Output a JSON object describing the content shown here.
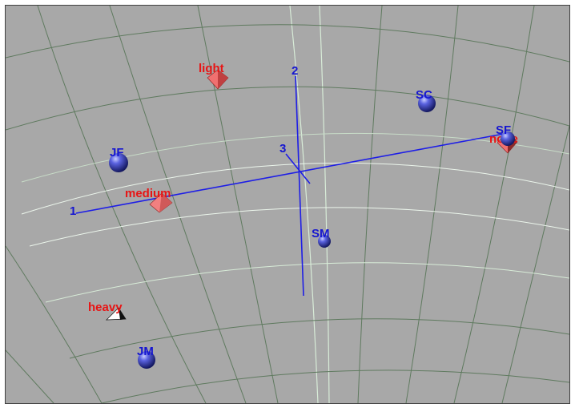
{
  "scene": {
    "background_color": "#a8a8a8",
    "grid_color_dark": "#5f7a5f",
    "grid_color_light": "#d8ecd8",
    "axis_color": "#1e1ee6",
    "sphere_color": "#3d45c8",
    "pyramid_color": "#f07070",
    "sphere_label_color": "#1616d0",
    "pyramid_label_color": "#e81414",
    "axes": [
      {
        "label": "1"
      },
      {
        "label": "2"
      },
      {
        "label": "3"
      }
    ],
    "spheres": [
      {
        "label": "JF"
      },
      {
        "label": "SC"
      },
      {
        "label": "SF"
      },
      {
        "label": "SM"
      },
      {
        "label": "JM"
      }
    ],
    "pyramids": [
      {
        "label": "light"
      },
      {
        "label": "medium"
      },
      {
        "label": "none"
      },
      {
        "label": "heavy"
      }
    ]
  }
}
